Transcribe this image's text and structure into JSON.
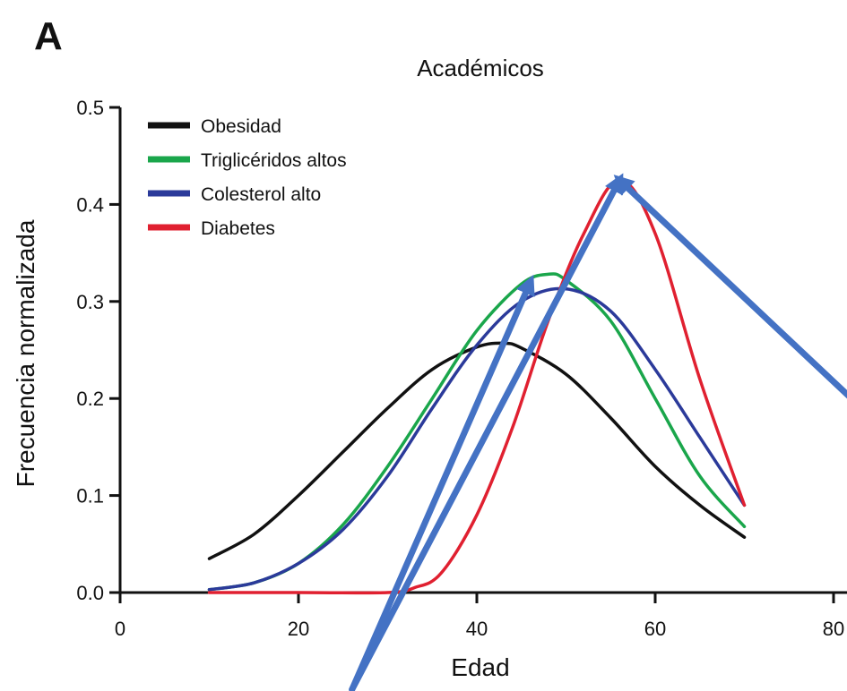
{
  "panel_label": "A",
  "chart_data": {
    "type": "line",
    "title": "Académicos",
    "xlabel": "Edad",
    "ylabel": "Frecuencia normalizada",
    "xlim": [
      0,
      80
    ],
    "ylim": [
      0,
      0.5
    ],
    "x_ticks": [
      0,
      20,
      40,
      60,
      80
    ],
    "y_ticks": [
      0.0,
      0.1,
      0.2,
      0.3,
      0.4,
      0.5
    ],
    "x_tick_labels": [
      "0",
      "20",
      "40",
      "60",
      "80"
    ],
    "y_tick_labels": [
      "0.0",
      "0.1",
      "0.2",
      "0.3",
      "0.4",
      "0.5"
    ],
    "grid": false,
    "legend_position": "top-left",
    "series": [
      {
        "name": "Obesidad",
        "color": "#111111",
        "x": [
          10,
          15,
          20,
          25,
          30,
          35,
          40,
          43,
          45,
          50,
          55,
          60,
          65,
          70
        ],
        "y": [
          0.035,
          0.06,
          0.1,
          0.145,
          0.19,
          0.23,
          0.253,
          0.257,
          0.252,
          0.225,
          0.18,
          0.13,
          0.09,
          0.057
        ]
      },
      {
        "name": "Triglicéridos altos",
        "color": "#1aa64b",
        "x": [
          10,
          15,
          20,
          25,
          30,
          35,
          40,
          45,
          48,
          50,
          55,
          60,
          65,
          70
        ],
        "y": [
          0.003,
          0.01,
          0.03,
          0.07,
          0.13,
          0.2,
          0.27,
          0.318,
          0.328,
          0.322,
          0.28,
          0.2,
          0.12,
          0.068
        ]
      },
      {
        "name": "Colesterol alto",
        "color": "#2b3a9a",
        "x": [
          10,
          15,
          20,
          25,
          30,
          35,
          40,
          45,
          50,
          55,
          60,
          65,
          70
        ],
        "y": [
          0.003,
          0.01,
          0.03,
          0.065,
          0.12,
          0.19,
          0.255,
          0.3,
          0.313,
          0.29,
          0.23,
          0.16,
          0.09
        ]
      },
      {
        "name": "Diabetes",
        "color": "#e02030",
        "x": [
          10,
          20,
          30,
          33,
          36,
          40,
          44,
          48,
          52,
          56,
          60,
          65,
          70
        ],
        "y": [
          0.0,
          0.0,
          0.0,
          0.005,
          0.02,
          0.08,
          0.17,
          0.28,
          0.37,
          0.425,
          0.37,
          0.22,
          0.09
        ]
      }
    ],
    "annotations": [
      {
        "type": "arrow",
        "color": "#4472c4",
        "from": [
          26,
          -0.1
        ],
        "to": [
          46,
          0.32
        ]
      },
      {
        "type": "arrow",
        "color": "#4472c4",
        "from": [
          26,
          -0.1
        ],
        "to": [
          56,
          0.425
        ]
      },
      {
        "type": "arrow",
        "color": "#4472c4",
        "from": [
          82,
          0.2
        ],
        "to": [
          56,
          0.425
        ]
      }
    ]
  }
}
